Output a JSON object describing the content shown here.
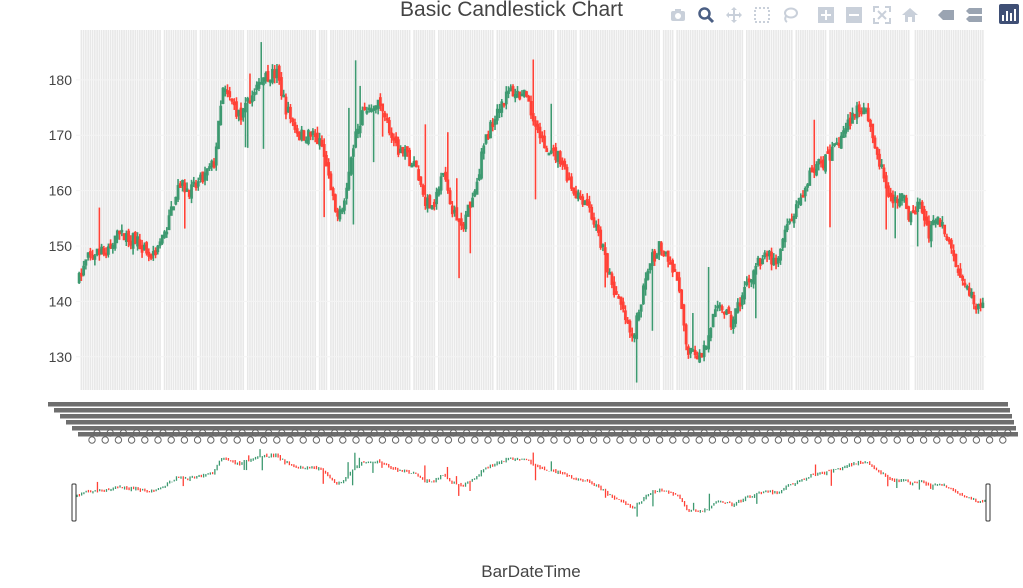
{
  "chart_data": {
    "type": "candlestick",
    "title": "Basic Candlestick Chart",
    "xlabel": "BarDateTime",
    "ylabel": "",
    "ylim": [
      124,
      189
    ],
    "yticks": [
      130,
      140,
      150,
      160,
      170,
      180
    ],
    "grid": true,
    "increasing_color": "#3d9970",
    "decreasing_color": "#ff4136",
    "rangeslider": true,
    "anchors": [
      [
        0,
        144
      ],
      [
        4,
        148
      ],
      [
        12,
        149
      ],
      [
        18,
        152
      ],
      [
        26,
        151
      ],
      [
        32,
        148
      ],
      [
        38,
        152
      ],
      [
        44,
        161
      ],
      [
        50,
        160
      ],
      [
        55,
        162
      ],
      [
        60,
        165
      ],
      [
        64,
        178
      ],
      [
        68,
        176
      ],
      [
        72,
        173
      ],
      [
        78,
        178
      ],
      [
        84,
        181
      ],
      [
        88,
        181
      ],
      [
        92,
        175
      ],
      [
        98,
        170
      ],
      [
        104,
        170
      ],
      [
        108,
        168
      ],
      [
        114,
        156
      ],
      [
        118,
        158
      ],
      [
        122,
        168
      ],
      [
        126,
        174
      ],
      [
        132,
        176
      ],
      [
        136,
        174
      ],
      [
        140,
        168
      ],
      [
        146,
        166
      ],
      [
        150,
        164
      ],
      [
        154,
        158
      ],
      [
        158,
        158
      ],
      [
        162,
        163
      ],
      [
        166,
        157
      ],
      [
        170,
        153
      ],
      [
        176,
        160
      ],
      [
        180,
        168
      ],
      [
        186,
        175
      ],
      [
        192,
        178
      ],
      [
        198,
        177
      ],
      [
        204,
        171
      ],
      [
        208,
        167
      ],
      [
        214,
        166
      ],
      [
        220,
        160
      ],
      [
        226,
        158
      ],
      [
        230,
        153
      ],
      [
        234,
        148
      ],
      [
        238,
        142
      ],
      [
        242,
        138
      ],
      [
        246,
        133
      ],
      [
        250,
        140
      ],
      [
        254,
        147
      ],
      [
        258,
        150
      ],
      [
        262,
        147
      ],
      [
        266,
        144
      ],
      [
        270,
        132
      ],
      [
        274,
        130
      ],
      [
        278,
        131
      ],
      [
        282,
        137
      ],
      [
        286,
        139
      ],
      [
        290,
        136
      ],
      [
        294,
        140
      ],
      [
        298,
        144
      ],
      [
        302,
        147
      ],
      [
        306,
        149
      ],
      [
        310,
        146
      ],
      [
        314,
        152
      ],
      [
        318,
        156
      ],
      [
        322,
        158
      ],
      [
        326,
        164
      ],
      [
        330,
        165
      ],
      [
        334,
        166
      ],
      [
        338,
        169
      ],
      [
        342,
        172
      ],
      [
        346,
        175
      ],
      [
        350,
        175
      ],
      [
        354,
        168
      ],
      [
        358,
        162
      ],
      [
        362,
        158
      ],
      [
        366,
        159
      ],
      [
        370,
        155
      ],
      [
        374,
        158
      ],
      [
        378,
        152
      ],
      [
        382,
        156
      ],
      [
        386,
        151
      ],
      [
        390,
        147
      ],
      [
        394,
        144
      ],
      [
        398,
        140
      ],
      [
        402,
        139
      ]
    ]
  },
  "toolbar": {
    "buttons": [
      "camera-icon",
      "zoom-icon",
      "pan-icon",
      "box-select-icon",
      "lasso-icon",
      "zoom-in-icon",
      "zoom-out-icon",
      "autoscale-icon",
      "reset-axes-icon",
      "spike-lines-icon",
      "compare-hover-icon",
      "plotly-logo-icon"
    ]
  }
}
